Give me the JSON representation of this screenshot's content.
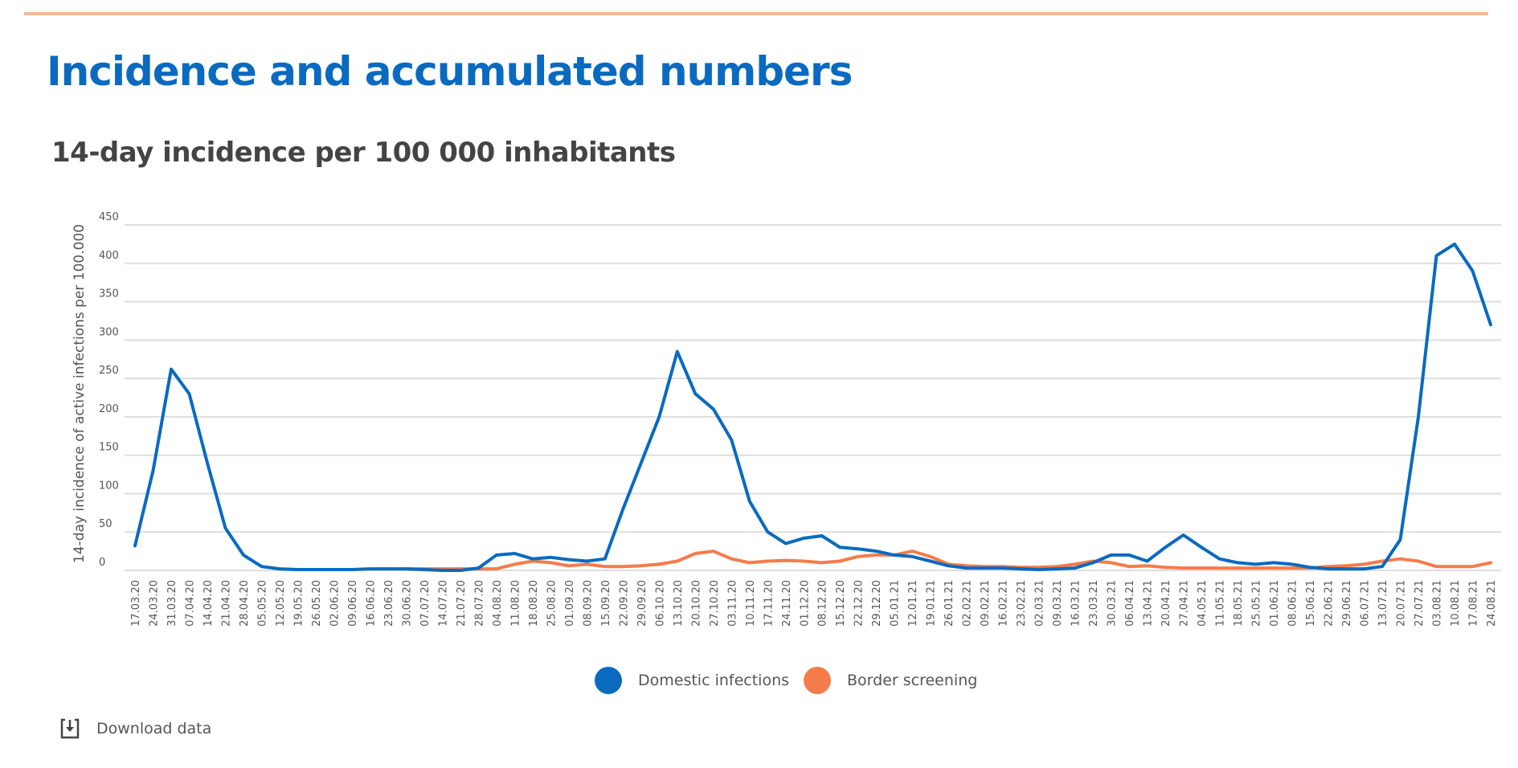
{
  "page": {
    "title": "Incidence and accumulated numbers",
    "accent_rule_color": "#f4b89a"
  },
  "chart": {
    "title": "14-day incidence per 100 000 inhabitants",
    "download_label": "Download data",
    "download_icon": "download-icon"
  },
  "chart_data": {
    "type": "line",
    "title": "14-day incidence per 100 000 inhabitants",
    "xlabel": "",
    "ylabel": "14-day incidence of active infections per 100.000",
    "ylim": [
      0,
      450
    ],
    "yticks": [
      0,
      50,
      100,
      150,
      200,
      250,
      300,
      350,
      400,
      450
    ],
    "grid": true,
    "legend_position": "bottom-center",
    "x": [
      "17.03.20",
      "24.03.20",
      "31.03.20",
      "07.04.20",
      "14.04.20",
      "21.04.20",
      "28.04.20",
      "05.05.20",
      "12.05.20",
      "19.05.20",
      "26.05.20",
      "02.06.20",
      "09.06.20",
      "16.06.20",
      "23.06.20",
      "30.06.20",
      "07.07.20",
      "14.07.20",
      "21.07.20",
      "28.07.20",
      "04.08.20",
      "11.08.20",
      "18.08.20",
      "25.08.20",
      "01.09.20",
      "08.09.20",
      "15.09.20",
      "22.09.20",
      "29.09.20",
      "06.10.20",
      "13.10.20",
      "20.10.20",
      "27.10.20",
      "03.11.20",
      "10.11.20",
      "17.11.20",
      "24.11.20",
      "01.12.20",
      "08.12.20",
      "15.12.20",
      "22.12.20",
      "29.12.20",
      "05.01.21",
      "12.01.21",
      "19.01.21",
      "26.01.21",
      "02.02.21",
      "09.02.21",
      "16.02.21",
      "23.02.21",
      "02.03.21",
      "09.03.21",
      "16.03.21",
      "23.03.21",
      "30.03.21",
      "06.04.21",
      "13.04.21",
      "20.04.21",
      "27.04.21",
      "04.05.21",
      "11.05.21",
      "18.05.21",
      "25.05.21",
      "01.06.21",
      "08.06.21",
      "15.06.21",
      "22.06.21",
      "29.06.21",
      "06.07.21",
      "13.07.21",
      "20.07.21",
      "27.07.21",
      "03.08.21",
      "10.08.21",
      "17.08.21",
      "24.08.21"
    ],
    "series": [
      {
        "name": "Domestic infections",
        "color": "#0a6ac0",
        "values": [
          32,
          130,
          262,
          230,
          140,
          55,
          20,
          5,
          2,
          1,
          1,
          1,
          1,
          2,
          2,
          2,
          1,
          0,
          0,
          3,
          20,
          22,
          15,
          17,
          14,
          12,
          15,
          80,
          140,
          200,
          285,
          230,
          210,
          170,
          90,
          50,
          35,
          42,
          45,
          30,
          28,
          25,
          20,
          18,
          12,
          6,
          3,
          3,
          3,
          2,
          1,
          2,
          3,
          10,
          20,
          20,
          12,
          30,
          46,
          30,
          15,
          10,
          8,
          10,
          8,
          4,
          2,
          2,
          2,
          5,
          40,
          200,
          410,
          425,
          390,
          320
        ]
      },
      {
        "name": "Border screening",
        "color": "#f47c4a",
        "values": [
          null,
          null,
          null,
          null,
          null,
          null,
          null,
          null,
          null,
          null,
          null,
          null,
          null,
          null,
          null,
          2,
          2,
          2,
          2,
          2,
          2,
          8,
          12,
          10,
          6,
          8,
          5,
          5,
          6,
          8,
          12,
          22,
          25,
          15,
          10,
          12,
          13,
          12,
          10,
          12,
          18,
          20,
          20,
          25,
          18,
          8,
          6,
          5,
          5,
          4,
          4,
          5,
          8,
          12,
          10,
          5,
          6,
          4,
          3,
          3,
          3,
          3,
          3,
          3,
          3,
          3,
          5,
          6,
          8,
          12,
          15,
          12,
          5,
          5,
          5,
          10
        ]
      }
    ]
  }
}
